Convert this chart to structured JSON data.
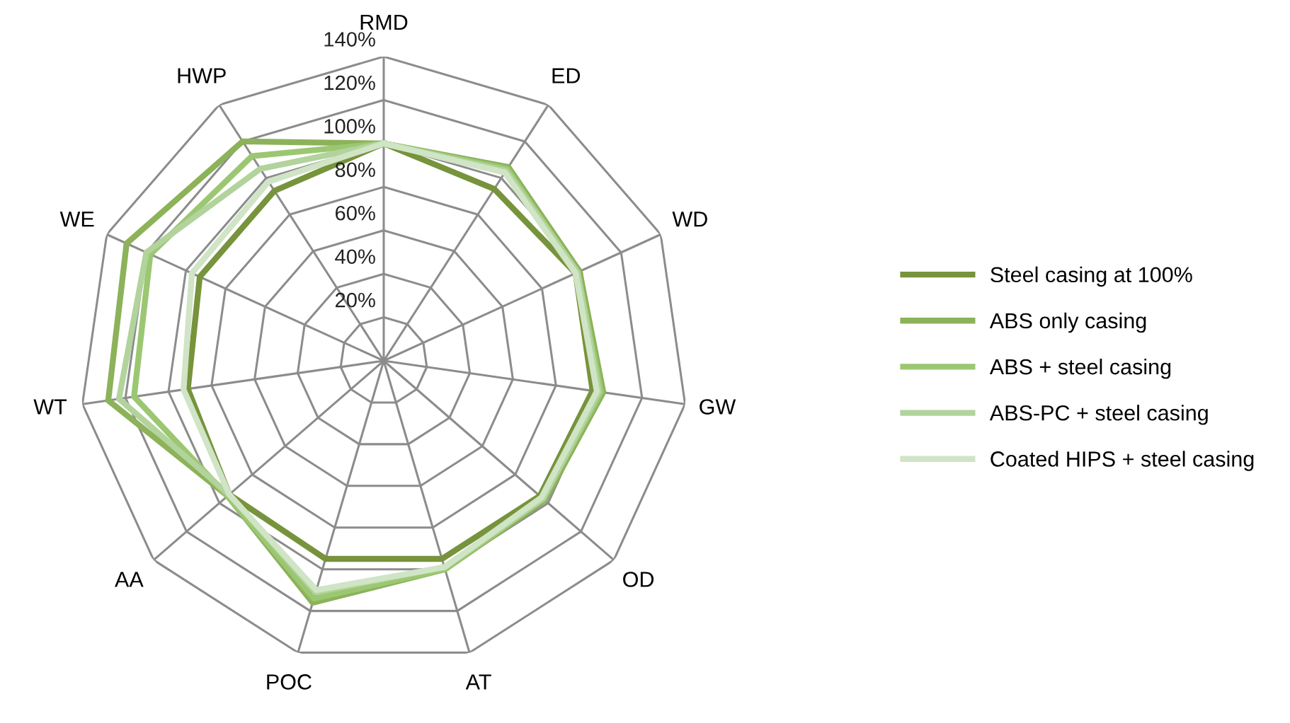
{
  "chart_data": {
    "type": "radar",
    "categories": [
      "RMD",
      "ED",
      "WD",
      "GW",
      "OD",
      "AT",
      "POC",
      "AA",
      "WT",
      "WE",
      "HWP"
    ],
    "ylim": [
      0,
      140
    ],
    "yticks": [
      {
        "value": 20,
        "label": "20%"
      },
      {
        "value": 40,
        "label": "40%"
      },
      {
        "value": 60,
        "label": "60%"
      },
      {
        "value": 80,
        "label": "80%"
      },
      {
        "value": 100,
        "label": "100%"
      },
      {
        "value": 120,
        "label": "120%"
      },
      {
        "value": 140,
        "label": "140%"
      }
    ],
    "grid": true,
    "legend": "right",
    "series": [
      {
        "name": "Steel casing at 100%",
        "color": "#77933c",
        "values": [
          100,
          94,
          97,
          97,
          95,
          95,
          95,
          94,
          91,
          93,
          93
        ]
      },
      {
        "name": "ABS only casing",
        "color": "#8cb25a",
        "values": [
          100,
          106,
          99,
          102,
          98,
          100,
          116,
          95,
          128,
          130,
          120
        ]
      },
      {
        "name": "ABS + steel casing",
        "color": "#9cc772",
        "values": [
          100,
          105,
          98,
          101,
          97,
          100,
          114,
          95,
          116,
          118,
          112
        ]
      },
      {
        "name": "ABS-PC + steel casing",
        "color": "#b2d39c",
        "values": [
          100,
          104,
          98,
          100,
          97,
          99,
          111,
          94,
          123,
          120,
          105
        ]
      },
      {
        "name": "Coated HIPS + steel casing",
        "color": "#d0e4c6",
        "values": [
          100,
          103,
          97,
          99,
          96,
          99,
          110,
          94,
          93,
          97,
          98
        ]
      }
    ]
  }
}
